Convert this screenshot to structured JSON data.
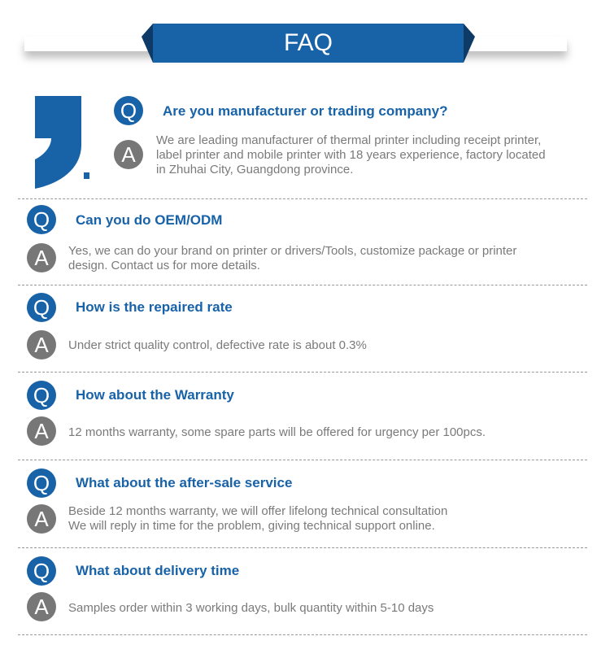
{
  "header": {
    "title": "FAQ"
  },
  "colors": {
    "brand": "#1862a8",
    "answer_circle": "#777777",
    "answer_text": "#7a7a7a"
  },
  "faq": [
    {
      "q_badge": "Q",
      "a_badge": "A",
      "question": "Are you manufacturer or trading company?",
      "answer": "We are leading manufacturer of thermal printer including receipt printer,\nlabel printer and mobile printer with 18 years experience, factory located\nin Zhuhai City, Guangdong province."
    },
    {
      "q_badge": "Q",
      "a_badge": "A",
      "question": "Can you do OEM/ODM",
      "answer": "Yes, we can do your brand on printer or drivers/Tools, customize package or printer\ndesign. Contact us for more details."
    },
    {
      "q_badge": "Q",
      "a_badge": "A",
      "question": "How is the repaired rate",
      "answer": "Under strict quality control, defective rate is about 0.3%"
    },
    {
      "q_badge": "Q",
      "a_badge": "A",
      "question": "How about the Warranty",
      "answer": "12 months warranty, some spare parts will be offered for urgency per 100pcs."
    },
    {
      "q_badge": "Q",
      "a_badge": "A",
      "question": "What about the after-sale service",
      "answer": "Beside 12 months warranty, we will offer lifelong technical consultation\nWe will reply in time for the problem, giving technical support online."
    },
    {
      "q_badge": "Q",
      "a_badge": "A",
      "question": "What about delivery time",
      "answer": "Samples order within 3 working days, bulk quantity within 5-10 days"
    }
  ]
}
